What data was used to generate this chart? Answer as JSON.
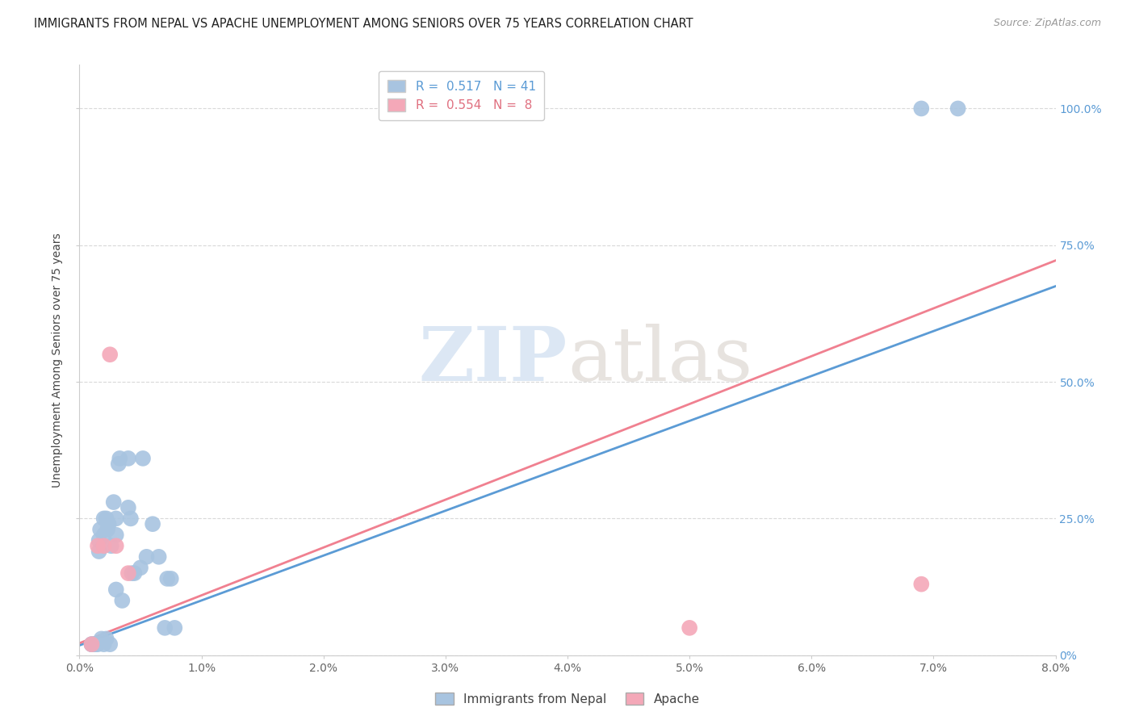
{
  "title": "IMMIGRANTS FROM NEPAL VS APACHE UNEMPLOYMENT AMONG SENIORS OVER 75 YEARS CORRELATION CHART",
  "source": "Source: ZipAtlas.com",
  "ylabel": "Unemployment Among Seniors over 75 years",
  "xlim": [
    0.0,
    0.08
  ],
  "ylim": [
    0.0,
    1.08
  ],
  "x_tick_labels": [
    "0.0%",
    "1.0%",
    "2.0%",
    "3.0%",
    "4.0%",
    "5.0%",
    "6.0%",
    "7.0%",
    "8.0%"
  ],
  "x_tick_values": [
    0.0,
    0.01,
    0.02,
    0.03,
    0.04,
    0.05,
    0.06,
    0.07,
    0.08
  ],
  "y_tick_labels": [
    "0%",
    "25.0%",
    "50.0%",
    "75.0%",
    "100.0%"
  ],
  "y_tick_values": [
    0.0,
    0.25,
    0.5,
    0.75,
    1.0
  ],
  "nepal_R": 0.517,
  "nepal_N": 41,
  "apache_R": 0.554,
  "apache_N": 8,
  "nepal_color": "#a8c4e0",
  "apache_color": "#f4a8b8",
  "nepal_line_color": "#5b9bd5",
  "apache_line_color": "#f08090",
  "watermark_zip": "ZIP",
  "watermark_atlas": "atlas",
  "nepal_x": [
    0.001,
    0.001,
    0.0012,
    0.0013,
    0.0015,
    0.0016,
    0.0016,
    0.0017,
    0.0018,
    0.002,
    0.002,
    0.002,
    0.0022,
    0.0022,
    0.0023,
    0.0024,
    0.0025,
    0.0026,
    0.0028,
    0.003,
    0.003,
    0.003,
    0.0032,
    0.0033,
    0.0035,
    0.004,
    0.004,
    0.0042,
    0.0043,
    0.0045,
    0.005,
    0.0052,
    0.0055,
    0.006,
    0.0065,
    0.007,
    0.0072,
    0.0075,
    0.0078,
    0.069,
    0.072
  ],
  "nepal_y": [
    0.02,
    0.02,
    0.02,
    0.02,
    0.02,
    0.19,
    0.21,
    0.23,
    0.03,
    0.02,
    0.22,
    0.25,
    0.03,
    0.25,
    0.23,
    0.24,
    0.02,
    0.2,
    0.28,
    0.22,
    0.12,
    0.25,
    0.35,
    0.36,
    0.1,
    0.27,
    0.36,
    0.25,
    0.15,
    0.15,
    0.16,
    0.36,
    0.18,
    0.24,
    0.18,
    0.05,
    0.14,
    0.14,
    0.05,
    1.0,
    1.0
  ],
  "apache_x": [
    0.001,
    0.0015,
    0.002,
    0.0025,
    0.003,
    0.004,
    0.05,
    0.069
  ],
  "apache_y": [
    0.02,
    0.2,
    0.2,
    0.55,
    0.2,
    0.15,
    0.05,
    0.13
  ],
  "grid_color": "#d0d0d0",
  "bg_color": "#ffffff",
  "title_fontsize": 10.5,
  "axis_label_fontsize": 10,
  "tick_fontsize": 10,
  "legend_fontsize": 11
}
